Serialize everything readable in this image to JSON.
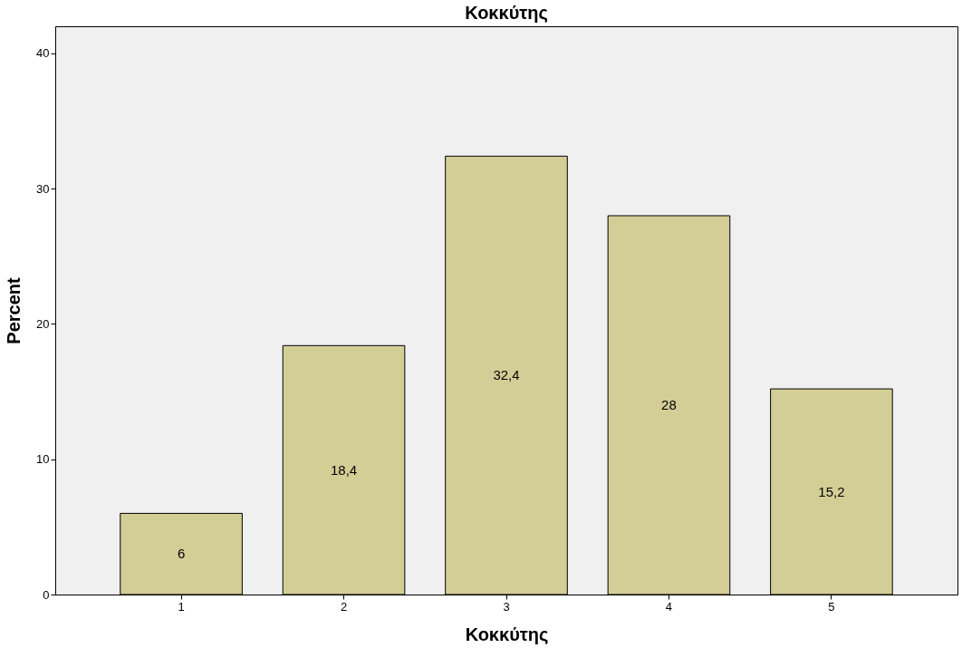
{
  "chart_data": {
    "type": "bar",
    "title": "Κοκκύτης",
    "xlabel": "Κοκκύτης",
    "ylabel": "Percent",
    "categories": [
      "1",
      "2",
      "3",
      "4",
      "5"
    ],
    "values": [
      6,
      18.4,
      32.4,
      28,
      15.2
    ],
    "value_labels": [
      "6",
      "18,4",
      "32,4",
      "28",
      "15,2"
    ],
    "color": "#d3ce96",
    "ylim": [
      0,
      42
    ],
    "yticks": [
      0,
      10,
      20,
      30,
      40
    ],
    "grid": false
  }
}
